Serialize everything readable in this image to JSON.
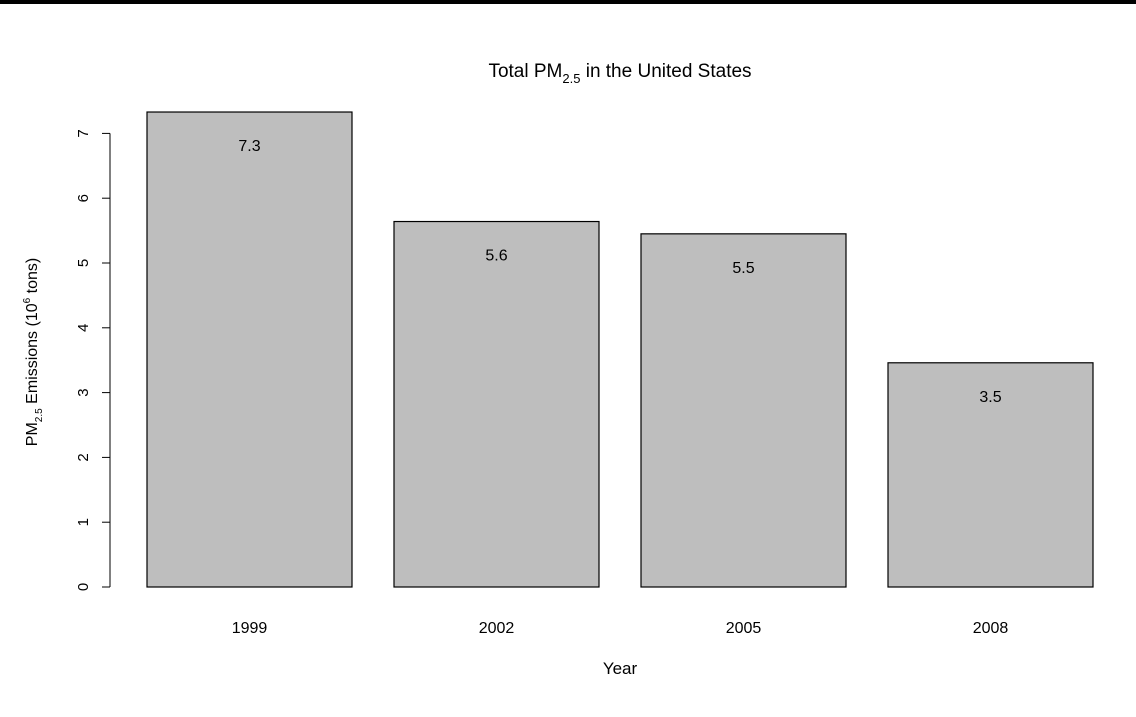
{
  "chart_data": {
    "type": "bar",
    "title": {
      "prefix": "Total PM",
      "subscript": "2.5",
      "suffix": " in the United States"
    },
    "xlabel": "Year",
    "ylabel": {
      "prefix": "PM",
      "subscript": "2.5",
      "middle": " Emissions (10",
      "superscript": "6",
      "suffix": " tons)"
    },
    "categories": [
      "1999",
      "2002",
      "2005",
      "2008"
    ],
    "values": [
      7.33,
      5.64,
      5.45,
      3.46
    ],
    "data_labels": [
      "7.3",
      "5.6",
      "5.5",
      "3.5"
    ],
    "yticks": [
      0,
      1,
      2,
      3,
      4,
      5,
      6,
      7
    ],
    "ylim": [
      0,
      7.33
    ],
    "bar_color": "#bebebe",
    "bar_edge_color": "#000000",
    "grid": false,
    "legend": "none"
  }
}
